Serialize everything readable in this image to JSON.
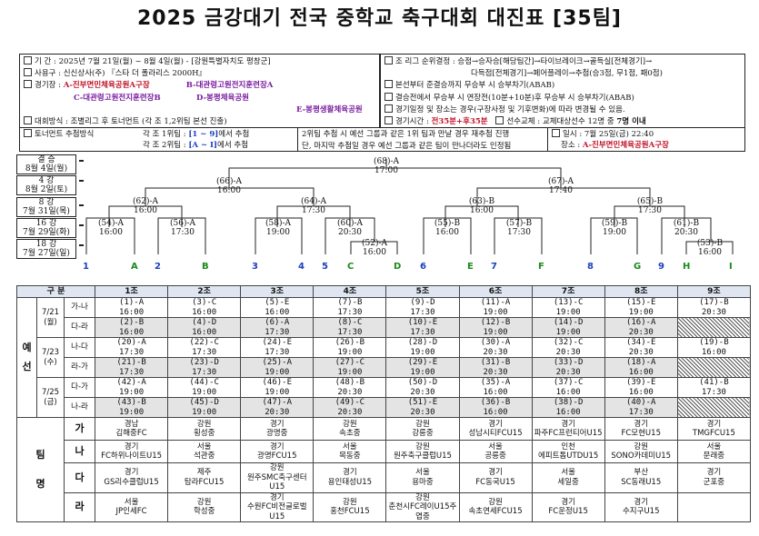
{
  "title": "2025 금강대기 전국 중학교 축구대회 대진표 [35팀]",
  "info_left": [
    {
      "label": "기  간 : ",
      "text": "2025년 7월 21일(월) ~ 8월 4일(월) - [강원특별자치도 평창군]"
    },
    {
      "label": "사용구 : ",
      "text": "신신상사(주) 『스타 더 폴라리스 2000H』"
    },
    {
      "label": "경기장 : ",
      "text": ""
    },
    {
      "label": "",
      "text": ""
    },
    {
      "label": "",
      "text": ""
    },
    {
      "label": "대회방식 : ",
      "text": "조별리그 후 토너먼트 (각 조 1,2위팀 본선 진출)"
    }
  ],
  "venues": {
    "a": "A-진부면민체육공원A구장",
    "b": "B-대관령고원전지훈련장A",
    "c": "C-대관령고원전지훈련장B",
    "d": "D-봉평체육공원",
    "e": "E-봉평생활체육공원"
  },
  "info_right": [
    "조 리그 순위결정 : 승점→승자승[해당팀간]→타이브레이크→골득실[전체경기]→",
    "다득점[전체경기]→페어플레이→추첨(승3점, 무1점, 패0점)",
    "본선부터 준결승까지 무승부 시 승부차기(ABAB)",
    "결승전에서 무승부 시 연장전(10분+10분)후 무승부 시 승부차기(ABAB)",
    "경기일정 및 장소는 경우(구장사정 및 기후변화)에 따라 변경될 수 있음."
  ],
  "info_extra": {
    "time_label": "경기시간 :",
    "time_value": "전35분+후35분",
    "sub_label": "선수교체 : 교체대상선수 12명 중",
    "sub_value": "7명 이내"
  },
  "draw": {
    "label": "토너먼트 추첨방식",
    "line1_pre": "각 조 1위팀 : ",
    "line1_range": "[1 ~ 9]",
    "line1_post": "에서 추첨",
    "line2_pre": "각 조 2위팀 : ",
    "line2_range": "[A ~ I]",
    "line2_post": "에서 추첨",
    "note1": "2위팀 추첨 시 예선 그룹과 같은 1위 팀과 만날 경우 재추첨 진행",
    "note2": "단, 마지막 추첨일 경우 예선 그룹과 같은 팀이 만나더라도 인정됨",
    "final_date": "일시 : 7월 25일(금) 22:40",
    "final_place_label": "장소 : ",
    "final_place": "A-진부면민체육공원A구장"
  },
  "rounds": [
    {
      "name": "결  승",
      "date": "8월 4일(월)"
    },
    {
      "name": "4  강",
      "date": "8월 2일(토)"
    },
    {
      "name": "8  강",
      "date": "7월 31일(목)"
    },
    {
      "name": "16 강",
      "date": "7월 29일(화)"
    },
    {
      "name": "18 강",
      "date": "7월 27일(일)"
    }
  ],
  "matches": {
    "m68": {
      "id": "(68)-A",
      "time": "17:00"
    },
    "m66": {
      "id": "(66)-A",
      "time": "16:00"
    },
    "m67": {
      "id": "(67)-A",
      "time": "17:40"
    },
    "m62": {
      "id": "(62)-A",
      "time": "16:00"
    },
    "m64": {
      "id": "(64)-A",
      "time": "17:30"
    },
    "m63": {
      "id": "(63)-B",
      "time": "16:00"
    },
    "m65": {
      "id": "(65)-B",
      "time": "17:30"
    },
    "m54": {
      "id": "(54)-A",
      "time": "16:00"
    },
    "m56": {
      "id": "(56)-A",
      "time": "17:30"
    },
    "m58": {
      "id": "(58)-A",
      "time": "19:00"
    },
    "m60": {
      "id": "(60)-A",
      "time": "20:30"
    },
    "m52": {
      "id": "(52)-A",
      "time": "16:00"
    },
    "m55": {
      "id": "(55)-B",
      "time": "16:00"
    },
    "m57": {
      "id": "(57)-B",
      "time": "17:30"
    },
    "m59": {
      "id": "(59)-B",
      "time": "19:00"
    },
    "m61": {
      "id": "(61)-B",
      "time": "20:30"
    },
    "m53": {
      "id": "(53)-B",
      "time": "16:00"
    }
  },
  "slots": [
    "1",
    "A",
    "2",
    "B",
    "3",
    "4",
    "5",
    "C",
    "D",
    "6",
    "E",
    "7",
    "F",
    "8",
    "G",
    "9",
    "H",
    "I"
  ],
  "slot_colors": {
    "number": "#1b3fbf",
    "letter": "#1a8a1a"
  },
  "grid": {
    "corner": "구  분",
    "groups": [
      "1조",
      "2조",
      "3조",
      "4조",
      "5조",
      "6조",
      "7조",
      "8조",
      "9조"
    ],
    "phase": "예\n\n선",
    "days": [
      {
        "date": "7/21\n(월)",
        "rows": [
          {
            "pair": "가-나",
            "cells": [
              "(1)-A\n16:00",
              "(3)-C\n16:00",
              "(5)-E\n16:00",
              "(7)-B\n17:30",
              "(9)-D\n17:30",
              "(11)-A\n19:00",
              "(13)-C\n19:00",
              "(15)-E\n19:00",
              "(17)-B\n20:30"
            ]
          },
          {
            "pair": "다-라",
            "cells": [
              "(2)-B\n16:00",
              "(4)-D\n16:00",
              "(6)-A\n17:30",
              "(8)-C\n17:30",
              "(10)-E\n17:30",
              "(12)-B\n19:00",
              "(14)-D\n19:00",
              "(16)-A\n20:30",
              ""
            ]
          }
        ]
      },
      {
        "date": "7/23\n(수)",
        "rows": [
          {
            "pair": "나-다",
            "cells": [
              "(20)-A\n17:30",
              "(22)-C\n17:30",
              "(24)-E\n17:30",
              "(26)-B\n19:00",
              "(28)-D\n19:00",
              "(30)-A\n20:30",
              "(32)-C\n20:30",
              "(34)-E\n20:30",
              "(19)-B\n16:00"
            ]
          },
          {
            "pair": "라-가",
            "cells": [
              "(21)-B\n17:30",
              "(23)-D\n17:30",
              "(25)-A\n19:00",
              "(27)-C\n19:00",
              "(29)-E\n19:00",
              "(31)-B\n20:30",
              "(33)-D\n20:30",
              "(18)-A\n16:00",
              ""
            ]
          }
        ]
      },
      {
        "date": "7/25\n(금)",
        "rows": [
          {
            "pair": "다-가",
            "cells": [
              "(42)-A\n19:00",
              "(44)-C\n19:00",
              "(46)-E\n19:00",
              "(48)-B\n20:30",
              "(50)-D\n20:30",
              "(35)-A\n16:00",
              "(37)-C\n16:00",
              "(39)-E\n16:00",
              "(41)-B\n17:30"
            ]
          },
          {
            "pair": "나-라",
            "cells": [
              "(43)-B\n19:00",
              "(45)-D\n19:00",
              "(47)-A\n20:30",
              "(49)-C\n20:30",
              "(51)-E\n20:30",
              "(36)-B\n16:00",
              "(38)-D\n16:00",
              "(40)-A\n17:30",
              ""
            ]
          }
        ]
      }
    ],
    "team_side": "팀\n\n\n명",
    "team_rows": [
      {
        "label": "가",
        "cells": [
          "경남\n김해중FC",
          "강원\n횡성중",
          "경기\n광명중",
          "강원\n속초중",
          "강원\n강릉중",
          "경기\n성남시티FCU15",
          "경기\n파주FC프런티어U15",
          "경기\nFC모현U15",
          "경기\nTMGFCU15"
        ]
      },
      {
        "label": "나",
        "cells": [
          "경기\nFC하위나이트U15",
          "서울\n석관중",
          "경기\n광명FCU15",
          "서울\n목동중",
          "강원\n원주축구클럽U15",
          "서울\n공릉중",
          "인천\n에피트톱UTDU15",
          "강원\nSONO카데미U15",
          "서울\n문래중"
        ]
      },
      {
        "label": "다",
        "cells": [
          "경기\nGS리수클럽U15",
          "제주\n탐라FCU15",
          "강원\n원주SMC축구센터U15",
          "경기\n용인태성U15",
          "서울\n용마중",
          "경기\nFC동국U15",
          "서울\n세일중",
          "부산\nSC동래U15",
          "경기\n군포중"
        ]
      },
      {
        "label": "라",
        "cells": [
          "서울\nJP인세FC",
          "강원\n학성중",
          "경기\n수원FC비전글로벌U15",
          "강원\n홍천FCU15",
          "강원\n춘천시FC레이U15주엽중",
          "강원\n속초연세FCU15",
          "경기\nFC운정U15",
          "경기\n수지구U15",
          ""
        ]
      }
    ]
  }
}
